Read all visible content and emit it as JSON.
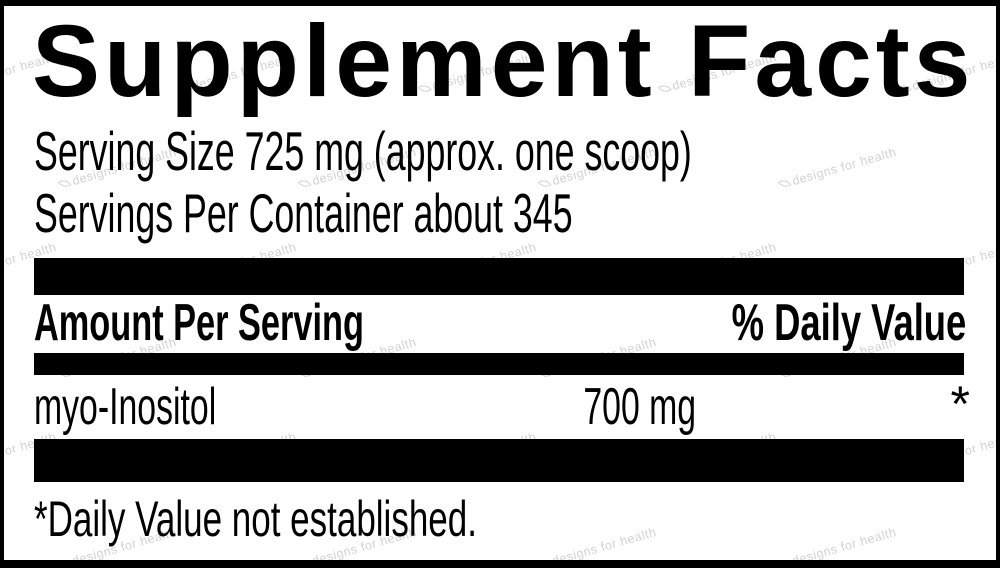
{
  "label": {
    "title": "Supplement Facts",
    "serving_size": "Serving Size 725 mg (approx. one scoop)",
    "servings_per_container": "Servings Per Container about 345",
    "header": {
      "amount_label": "Amount Per Serving",
      "daily_value_label": "% Daily Value"
    },
    "rows": [
      {
        "name": "myo-Inositol",
        "amount": "700 mg",
        "daily_value": "*"
      }
    ],
    "footnote": "*Daily Value not established."
  },
  "watermark": {
    "text": "designs for health",
    "icon": "leaf-swoosh-icon",
    "color": "#d2d2d2"
  },
  "colors": {
    "ink": "#000000",
    "background": "#ffffff"
  }
}
